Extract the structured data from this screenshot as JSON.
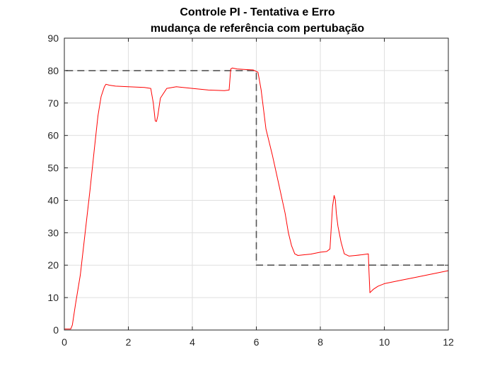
{
  "chart_data": {
    "type": "line",
    "title_lines": [
      "Controle PI - Tentativa e Erro",
      "mudança de referência com pertubação"
    ],
    "xlabel": "",
    "ylabel": "",
    "xlim": [
      0,
      12
    ],
    "ylim": [
      0,
      90
    ],
    "xticks": [
      0,
      2,
      4,
      6,
      8,
      10,
      12
    ],
    "yticks": [
      0,
      10,
      20,
      30,
      40,
      50,
      60,
      70,
      80,
      90
    ],
    "grid": true,
    "legend": "none",
    "series": [
      {
        "style": "dashed",
        "color": "#555555",
        "x": [
          0.05,
          6.0,
          6.0,
          12.0
        ],
        "y": [
          80,
          80,
          20,
          20
        ]
      },
      {
        "style": "solid",
        "color": "#ff0000",
        "x": [
          0,
          0.2,
          0.25,
          0.35,
          0.5,
          0.65,
          0.8,
          0.95,
          1.05,
          1.15,
          1.25,
          1.3,
          1.4,
          1.6,
          2.0,
          2.5,
          2.7,
          2.78,
          2.84,
          2.88,
          2.92,
          3.0,
          3.2,
          3.5,
          4.0,
          4.5,
          5.0,
          5.15,
          5.2,
          5.25,
          5.4,
          5.7,
          5.9,
          6.05,
          6.15,
          6.3,
          6.5,
          6.7,
          6.9,
          7.0,
          7.1,
          7.2,
          7.3,
          7.5,
          7.7,
          8.0,
          8.2,
          8.3,
          8.38,
          8.43,
          8.47,
          8.5,
          8.55,
          8.65,
          8.75,
          8.9,
          9.1,
          9.3,
          9.5,
          9.52,
          9.55,
          9.65,
          9.8,
          10.0,
          10.5,
          11.0,
          11.5,
          12.0
        ],
        "y": [
          0.3,
          0.3,
          1.5,
          8,
          17,
          30,
          43,
          57,
          66,
          72,
          75,
          75.8,
          75.5,
          75.2,
          75,
          74.8,
          74.5,
          70,
          64.5,
          64.3,
          66,
          71.5,
          74.5,
          75,
          74.5,
          74,
          73.8,
          74,
          80.5,
          80.8,
          80.5,
          80.3,
          80.2,
          79.5,
          74,
          62,
          54,
          45,
          36,
          30,
          26,
          23.5,
          23,
          23.2,
          23.4,
          24,
          24.2,
          25,
          38,
          41.5,
          40,
          36,
          32,
          27,
          23.5,
          22.8,
          23,
          23.2,
          23.5,
          18,
          11.5,
          12.5,
          13.5,
          14.3,
          15.3,
          16.3,
          17.3,
          18.3
        ]
      }
    ]
  }
}
